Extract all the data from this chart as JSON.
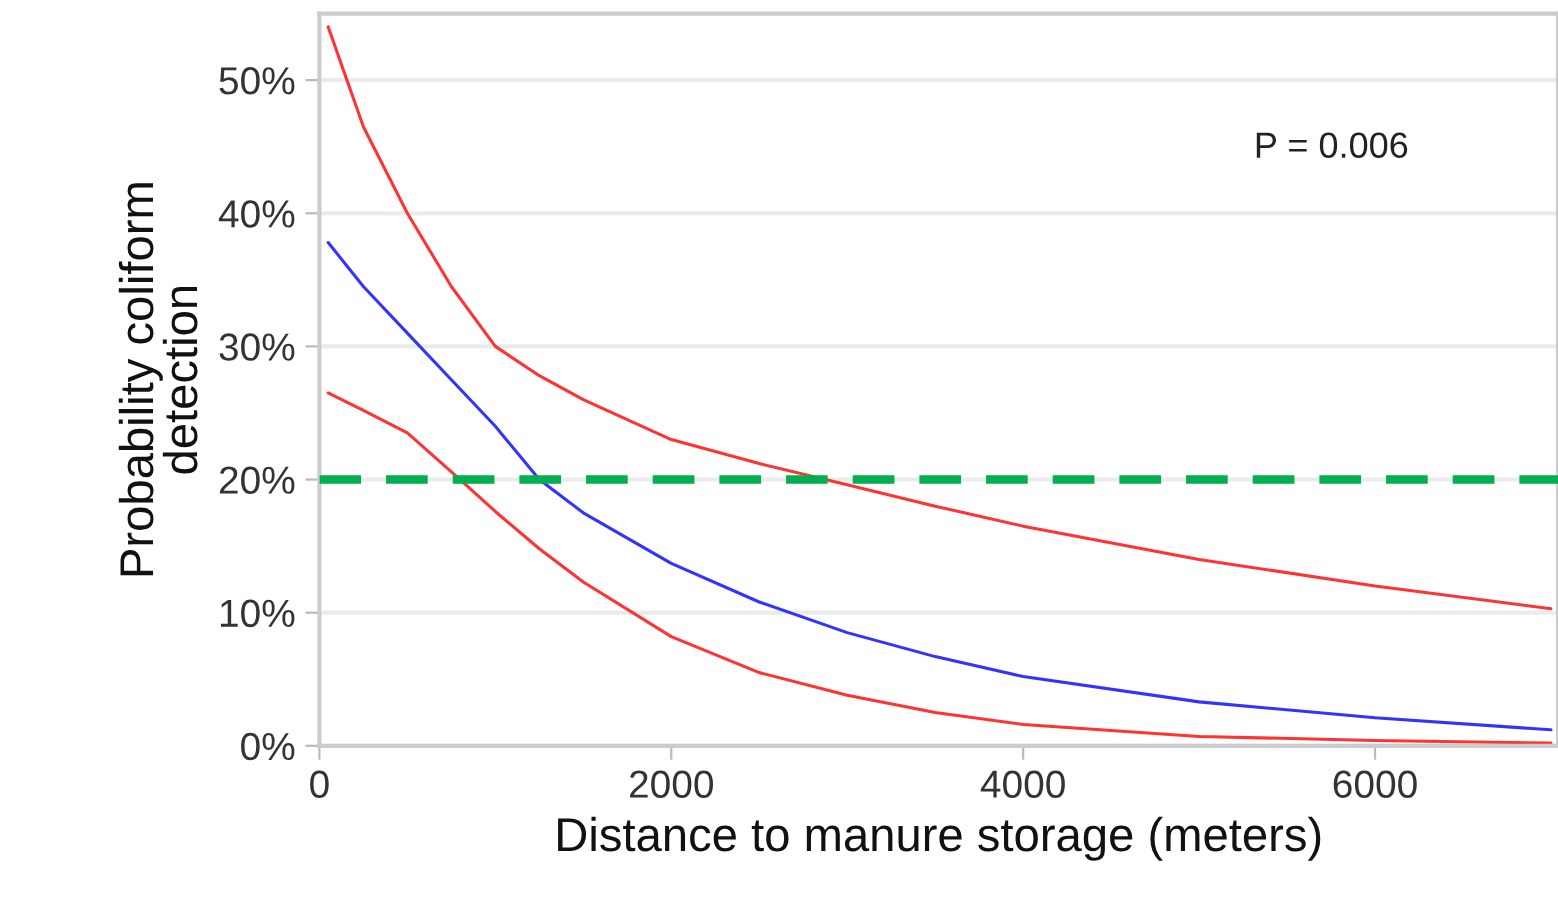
{
  "chart_data": {
    "type": "line",
    "xlabel": "Distance to manure storage (meters)",
    "ylabel": "Probability coliform\ndetection",
    "xlim": [
      0,
      7040
    ],
    "xticks": [
      0,
      2000,
      4000,
      6000
    ],
    "ylim": [
      0,
      55
    ],
    "yticks": [
      {
        "value": 0,
        "label": "0%"
      },
      {
        "value": 10,
        "label": "10%"
      },
      {
        "value": 20,
        "label": "20%"
      },
      {
        "value": 30,
        "label": "30%"
      },
      {
        "value": 40,
        "label": "40%"
      },
      {
        "value": 50,
        "label": "50%"
      }
    ],
    "grid": "y",
    "legend": false,
    "marker": "none",
    "line_style": "solid",
    "series": [
      {
        "color": "#ff3333",
        "x": [
          50,
          250,
          500,
          750,
          1000,
          1250,
          1500,
          2000,
          2500,
          3000,
          3500,
          4000,
          5000,
          6000,
          7000
        ],
        "values": [
          54,
          46.5,
          40,
          34.5,
          30,
          27.8,
          26,
          23,
          21.2,
          19.6,
          18,
          16.5,
          14,
          12,
          10.3
        ]
      },
      {
        "color": "#3333ff",
        "x": [
          50,
          250,
          500,
          750,
          1000,
          1250,
          1500,
          2000,
          2500,
          3000,
          3500,
          4000,
          5000,
          6000,
          7000
        ],
        "values": [
          37.8,
          34.5,
          31,
          27.5,
          24,
          20,
          17.5,
          13.7,
          10.8,
          8.5,
          6.7,
          5.2,
          3.3,
          2.1,
          1.2
        ]
      },
      {
        "color": "#ff3333",
        "x": [
          50,
          250,
          500,
          800,
          1000,
          1250,
          1500,
          2000,
          2500,
          3000,
          3500,
          4000,
          5000,
          6000,
          7000
        ],
        "values": [
          26.5,
          25.2,
          23.5,
          20,
          17.6,
          14.8,
          12.3,
          8.2,
          5.5,
          3.8,
          2.5,
          1.6,
          0.7,
          0.4,
          0.2
        ]
      }
    ],
    "ref_lines": [
      {
        "axis": "y",
        "value": 20,
        "color": "#00b050",
        "line_style": "dashed"
      }
    ],
    "annotations": [
      "P = 0.006"
    ]
  }
}
